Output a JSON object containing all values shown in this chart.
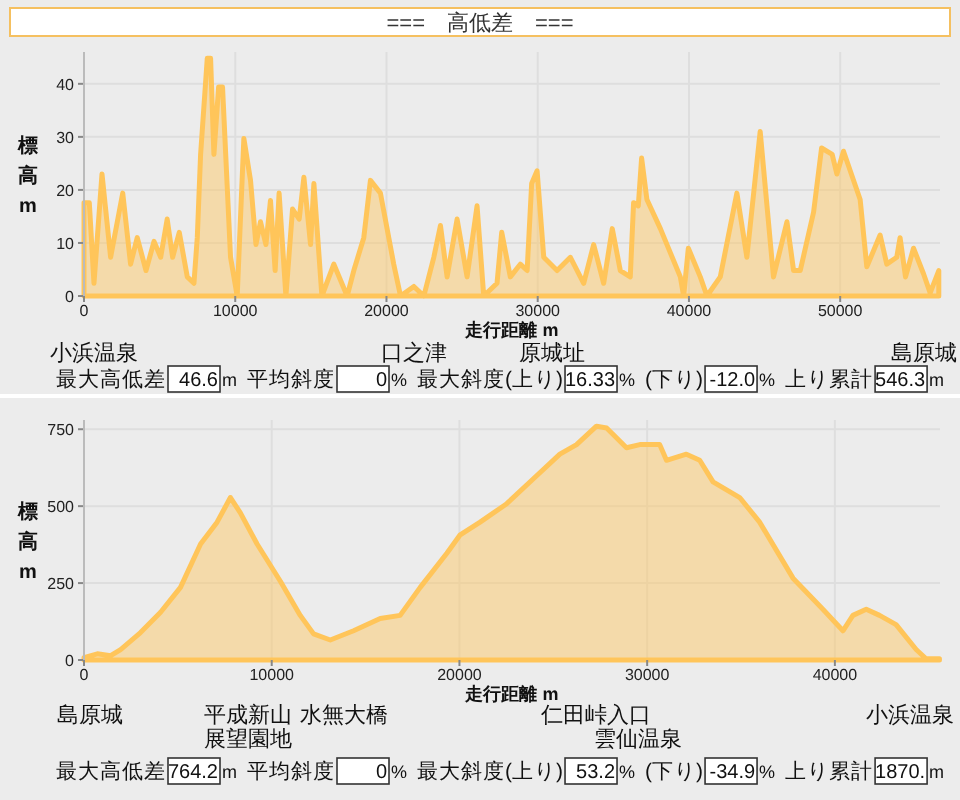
{
  "chart_data": [
    {
      "type": "area",
      "title": "===　高低差　===",
      "xlabel": "走行距離 m",
      "ylabel": "標高 m",
      "color": "#ffc55a",
      "grid": true,
      "xlim": [
        0,
        56600
      ],
      "xticks": [
        0,
        10000,
        20000,
        30000,
        40000,
        50000
      ],
      "ylim": [
        0,
        46
      ],
      "yticks": [
        0,
        10,
        20,
        30,
        40
      ],
      "x": [
        0,
        350,
        660,
        1190,
        1760,
        2560,
        3080,
        3520,
        4100,
        4630,
        5070,
        5500,
        5860,
        6300,
        6830,
        7270,
        7490,
        7710,
        8150,
        8370,
        8590,
        8900,
        9160,
        9690,
        10130,
        10570,
        11010,
        11370,
        11670,
        12030,
        12330,
        12640,
        12900,
        13350,
        13790,
        14230,
        14540,
        14980,
        15200,
        15730,
        16520,
        17400,
        17840,
        18500,
        18940,
        19600,
        20480,
        20930,
        21810,
        22470,
        23130,
        23570,
        24010,
        24670,
        25330,
        25990,
        26430,
        27310,
        27620,
        28190,
        28850,
        29300,
        29600,
        29960,
        30400,
        31280,
        32160,
        33040,
        33700,
        34360,
        34930,
        35460,
        36120,
        36340,
        36650,
        36870,
        37220,
        38110,
        39430,
        39650,
        39960,
        40750,
        41190,
        42070,
        43170,
        43830,
        44710,
        45590,
        46480,
        46920,
        47360,
        48240,
        48770,
        49470,
        49780,
        50220,
        51320,
        51760,
        52640,
        53080,
        53740,
        53960,
        54320,
        54850,
        55510,
        55950,
        56520
      ],
      "values": [
        17.6,
        17.6,
        2.4,
        23,
        7.3,
        19.4,
        6,
        11,
        4.8,
        10.3,
        7.3,
        14.5,
        7.3,
        12,
        3.6,
        2.4,
        11,
        26.7,
        44.8,
        44.8,
        26.7,
        39.4,
        39.4,
        7.3,
        0,
        29.7,
        21.8,
        9.7,
        14,
        9.7,
        18,
        4.8,
        19.4,
        0,
        16.4,
        14.5,
        22.4,
        9.7,
        21.2,
        0,
        6,
        0,
        4.8,
        11,
        21.8,
        19.4,
        6,
        0,
        1.8,
        0,
        7.3,
        13.3,
        3.6,
        14.5,
        3.6,
        17,
        0,
        2.4,
        12,
        3.6,
        6,
        4.8,
        21.2,
        23.6,
        7.3,
        4.8,
        7.3,
        2.4,
        9.7,
        2.4,
        12.7,
        4.8,
        3.6,
        17.6,
        17,
        26,
        18.2,
        12.7,
        3.6,
        0,
        9,
        3.6,
        0,
        3.6,
        19.4,
        7.3,
        31,
        3.6,
        14,
        4.8,
        4.8,
        15.8,
        27.9,
        26.7,
        23,
        27.3,
        18.2,
        5.5,
        11.5,
        6,
        7.3,
        11,
        3.6,
        9,
        4.2,
        0.6,
        4.8
      ],
      "annotations": [
        "小浜温泉",
        "口之津",
        "原城址",
        "島原城",
        "最大高低差",
        "46.6",
        "m",
        "平均斜度",
        "0",
        "%",
        "最大斜度(上り)",
        "16.33",
        "%",
        "(下り)",
        "-12.0",
        "%",
        "上り累計",
        "546.3",
        "m"
      ]
    },
    {
      "type": "area",
      "xlabel": "走行距離 m",
      "ylabel": "標高 m",
      "color": "#ffc55a",
      "grid": true,
      "xlim": [
        0,
        45600
      ],
      "xticks": [
        0,
        10000,
        20000,
        30000,
        40000
      ],
      "ylim": [
        0,
        780
      ],
      "yticks": [
        0,
        250,
        500,
        750
      ],
      "x": [
        0,
        710,
        1420,
        1950,
        3010,
        4080,
        5140,
        6210,
        7090,
        7800,
        8330,
        9220,
        10460,
        11520,
        12230,
        13120,
        14360,
        15780,
        16840,
        17910,
        19330,
        20040,
        21100,
        22520,
        23940,
        25350,
        26240,
        27300,
        27840,
        28900,
        29610,
        30670,
        31030,
        32090,
        32800,
        33510,
        34930,
        35990,
        37770,
        39360,
        40430,
        40960,
        41670,
        42380,
        43260,
        44330,
        44860,
        45570
      ],
      "values": [
        8,
        20,
        14,
        34,
        89,
        155,
        236,
        377,
        448,
        528,
        478,
        377,
        256,
        145,
        85,
        65,
        95,
        135,
        145,
        236,
        347,
        407,
        448,
        508,
        589,
        669,
        700,
        760,
        754,
        690,
        700,
        700,
        649,
        669,
        649,
        579,
        528,
        448,
        266,
        165,
        95,
        145,
        165,
        145,
        115,
        34,
        4,
        4
      ],
      "annotations": [
        "島原城",
        "平成新山",
        "展望園地",
        "水無大橋",
        "仁田峠入口",
        "雲仙温泉",
        "小浜温泉",
        "最大高低差",
        "764.2",
        "m",
        "平均斜度",
        "0",
        "%",
        "最大斜度(上り)",
        "53.2",
        "%",
        "(下り)",
        "-34.9",
        "%",
        "上り累計",
        "1870.",
        "m"
      ]
    }
  ]
}
